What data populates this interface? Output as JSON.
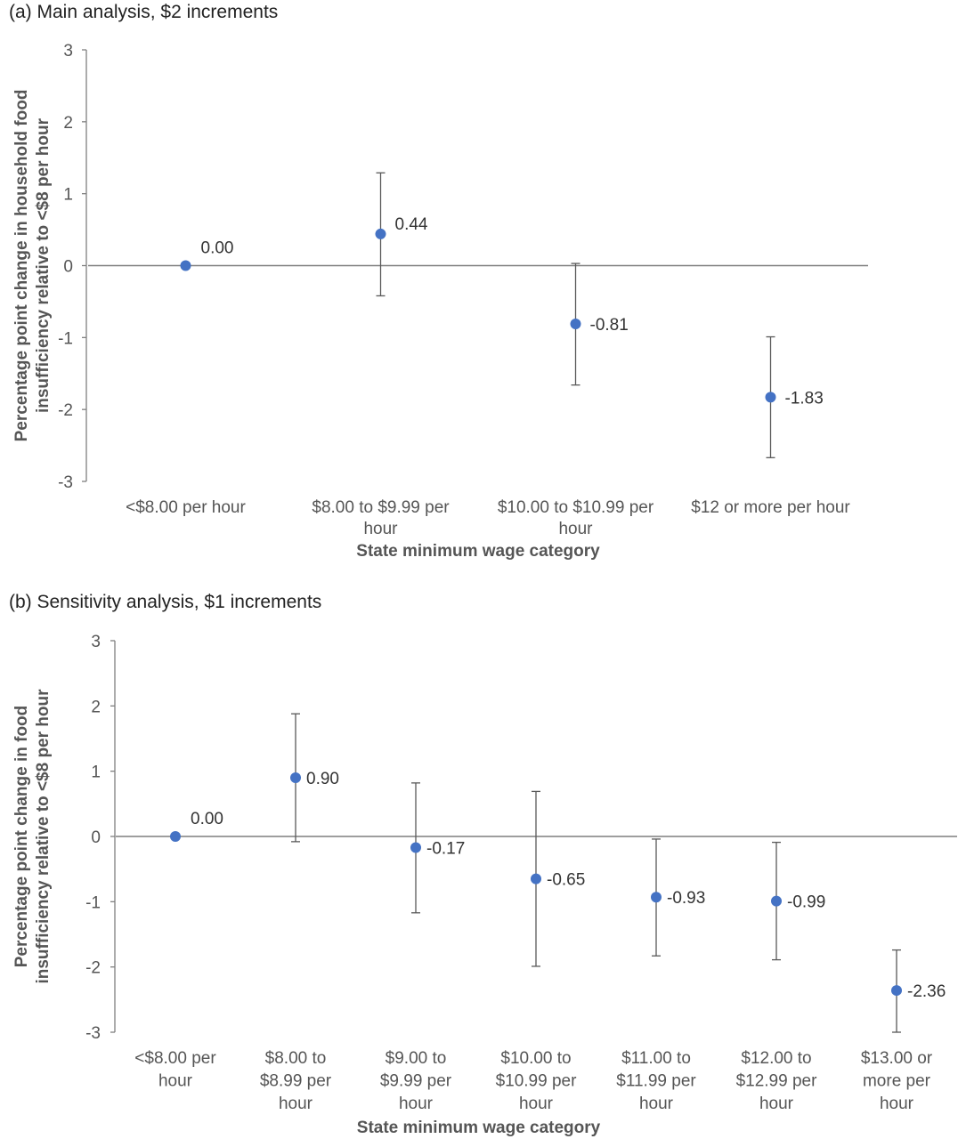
{
  "chart_data": [
    {
      "type": "scatter",
      "title": "(a)  Main analysis, $2 increments",
      "ylabel": [
        "Percentage point change in household food",
        "insufficiency relative to <$8 per hour"
      ],
      "xlabel": "State minimum wage category",
      "ylim": [
        -3,
        3
      ],
      "yticks": [
        3,
        2,
        1,
        0,
        -1,
        -2,
        -3
      ],
      "categories": [
        [
          "<$8.00 per hour"
        ],
        [
          "$8.00 to $9.99 per",
          "hour"
        ],
        [
          "$10.00 to $10.99 per",
          "hour"
        ],
        [
          "$12 or more per hour"
        ]
      ],
      "values": [
        0.0,
        0.44,
        -0.81,
        -1.83
      ],
      "value_labels": [
        "0.00",
        "0.44",
        "-0.81",
        "-1.83"
      ],
      "ci_low": [
        null,
        -0.42,
        -1.66,
        -2.67
      ],
      "ci_high": [
        null,
        1.29,
        0.03,
        -0.99
      ],
      "marker_color": "#4472C4",
      "grid": false
    },
    {
      "type": "scatter",
      "title": "(b)  Sensitivity analysis, $1 increments",
      "ylabel": [
        "Percentage point change in food",
        "insufficiency relative to <$8 per hour"
      ],
      "xlabel": "State minimum wage category",
      "ylim": [
        -3,
        3
      ],
      "yticks": [
        3,
        2,
        1,
        0,
        -1,
        -2,
        -3
      ],
      "categories": [
        [
          "<$8.00 per",
          "hour"
        ],
        [
          "$8.00 to",
          "$8.99 per",
          "hour"
        ],
        [
          "$9.00 to",
          "$9.99 per",
          "hour"
        ],
        [
          "$10.00 to",
          "$10.99 per",
          "hour"
        ],
        [
          "$11.00 to",
          "$11.99 per",
          "hour"
        ],
        [
          "$12.00 to",
          "$12.99 per",
          "hour"
        ],
        [
          "$13.00 or",
          "more per",
          "hour"
        ]
      ],
      "values": [
        0.0,
        0.9,
        -0.17,
        -0.65,
        -0.93,
        -0.99,
        -2.36
      ],
      "value_labels": [
        "0.00",
        "0.90",
        "-0.17",
        "-0.65",
        "-0.93",
        "-0.99",
        "-2.36"
      ],
      "ci_low": [
        null,
        -0.08,
        -1.17,
        -1.99,
        -1.83,
        -1.89,
        -3.0
      ],
      "ci_high": [
        null,
        1.88,
        0.82,
        0.69,
        -0.04,
        -0.09,
        -1.74
      ],
      "marker_color": "#4472C4",
      "grid": false
    }
  ]
}
